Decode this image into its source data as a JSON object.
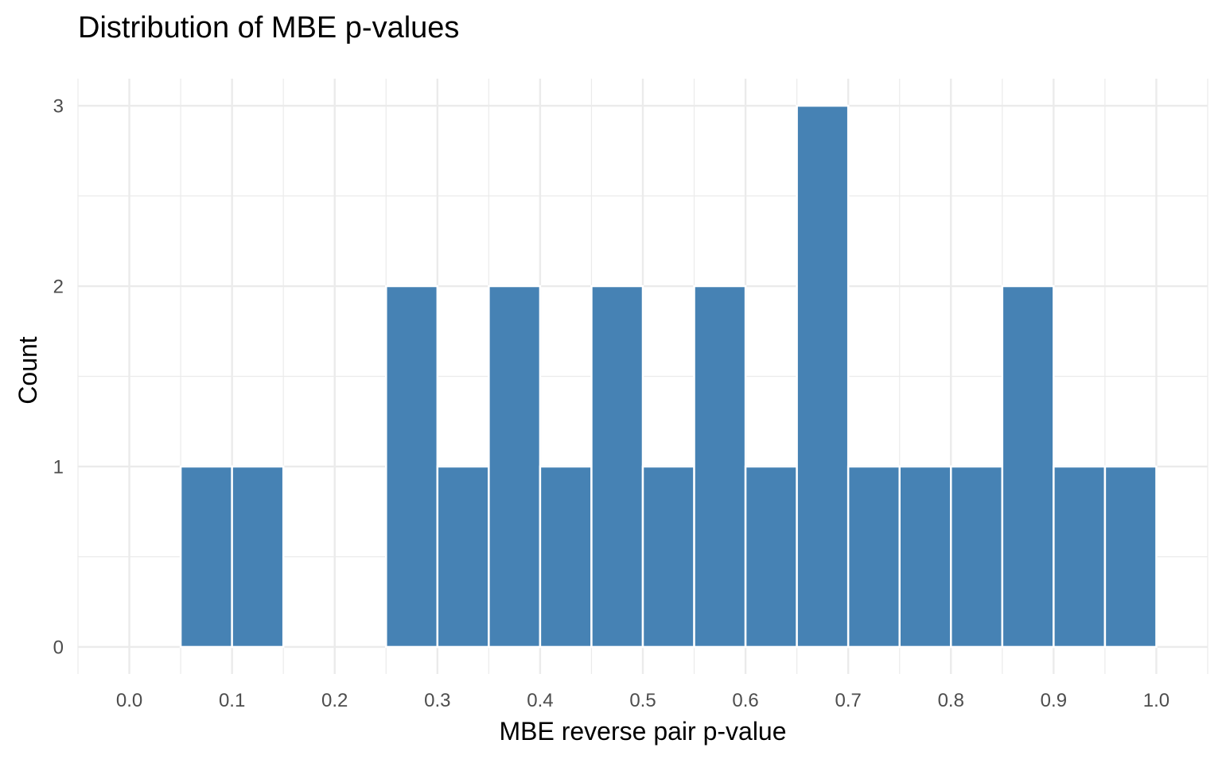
{
  "chart_data": {
    "type": "bar",
    "title": "Distribution of MBE p-values",
    "xlabel": "MBE reverse pair p-value",
    "ylabel": "Count",
    "bin_width": 0.05,
    "bins": [
      {
        "start": 0.0,
        "end": 0.05,
        "count": 0
      },
      {
        "start": 0.05,
        "end": 0.1,
        "count": 1
      },
      {
        "start": 0.1,
        "end": 0.15,
        "count": 1
      },
      {
        "start": 0.15,
        "end": 0.2,
        "count": 0
      },
      {
        "start": 0.2,
        "end": 0.25,
        "count": 0
      },
      {
        "start": 0.25,
        "end": 0.3,
        "count": 2
      },
      {
        "start": 0.3,
        "end": 0.35,
        "count": 1
      },
      {
        "start": 0.35,
        "end": 0.4,
        "count": 2
      },
      {
        "start": 0.4,
        "end": 0.45,
        "count": 1
      },
      {
        "start": 0.45,
        "end": 0.5,
        "count": 2
      },
      {
        "start": 0.5,
        "end": 0.55,
        "count": 1
      },
      {
        "start": 0.55,
        "end": 0.6,
        "count": 2
      },
      {
        "start": 0.6,
        "end": 0.65,
        "count": 1
      },
      {
        "start": 0.65,
        "end": 0.7,
        "count": 3
      },
      {
        "start": 0.7,
        "end": 0.75,
        "count": 1
      },
      {
        "start": 0.75,
        "end": 0.8,
        "count": 1
      },
      {
        "start": 0.8,
        "end": 0.85,
        "count": 1
      },
      {
        "start": 0.85,
        "end": 0.9,
        "count": 2
      },
      {
        "start": 0.9,
        "end": 0.95,
        "count": 1
      },
      {
        "start": 0.95,
        "end": 1.0,
        "count": 1
      }
    ],
    "x_ticks": [
      "0.0",
      "0.1",
      "0.2",
      "0.3",
      "0.4",
      "0.5",
      "0.6",
      "0.7",
      "0.8",
      "0.9",
      "1.0"
    ],
    "y_ticks": [
      "0",
      "1",
      "2",
      "3"
    ],
    "xlim": [
      -0.05,
      1.05
    ],
    "ylim": [
      -0.15,
      3.15
    ],
    "grid": true,
    "bar_color": "#4682B4",
    "bar_outline_color": "#FFFFFF",
    "grid_color": "#EBEBEB"
  }
}
